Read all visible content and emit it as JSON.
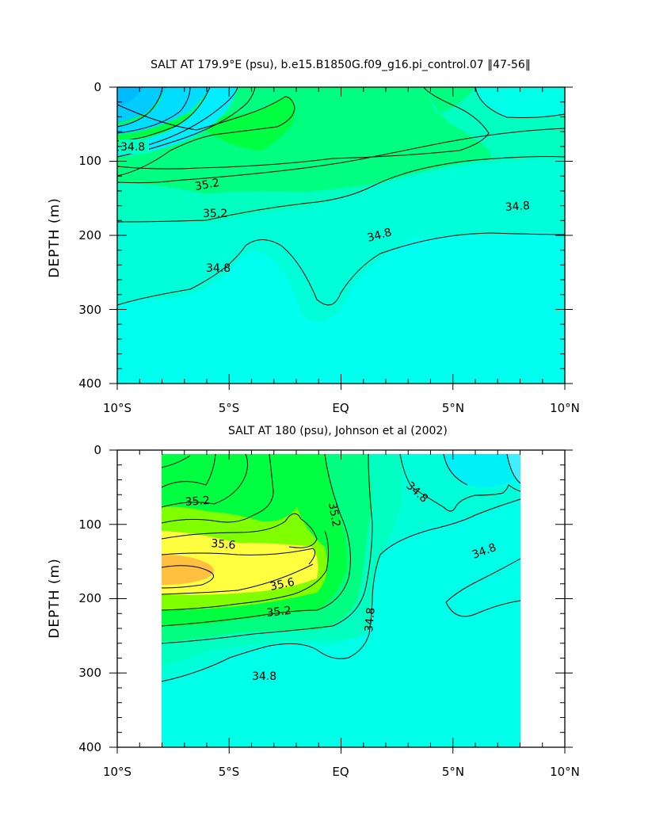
{
  "chart_data": [
    {
      "type": "heatmap",
      "title": "SALT AT 179.9°E (psu), b.e15.B1850G.f09_g16.pi_control.07 ‖47-56‖",
      "ylabel": "DEPTH (m)",
      "xlabel": "",
      "xlim": [
        -10,
        10
      ],
      "ylim": [
        400,
        0
      ],
      "x_tick_labels": [
        "10°S",
        "5°S",
        "EQ",
        "5°N",
        "10°N"
      ],
      "y_tick_labels": [
        "0",
        "100",
        "200",
        "300",
        "400"
      ],
      "contour_labels": [
        "34.8",
        "35.2",
        "35.2",
        "34.8",
        "34.8",
        "34.8"
      ],
      "data_extent_x": [
        -10,
        10
      ],
      "colors": {
        "low": "#00ffee",
        "mid_low": "#00ffc0",
        "mid": "#00ff80",
        "high": "#00ff40",
        "fresh": "#00ccff"
      }
    },
    {
      "type": "heatmap",
      "title": "SALT AT 180 (psu), Johnson et al (2002)",
      "ylabel": "DEPTH (m)",
      "xlabel": "",
      "xlim": [
        -10,
        10
      ],
      "ylim": [
        400,
        0
      ],
      "x_tick_labels": [
        "10°S",
        "5°S",
        "EQ",
        "5°N",
        "10°N"
      ],
      "y_tick_labels": [
        "0",
        "100",
        "200",
        "300",
        "400"
      ],
      "contour_labels": [
        "35.2",
        "35.6",
        "35.6",
        "35.2",
        "35.2",
        "34.8",
        "34.8",
        "34.8",
        "34.8"
      ],
      "data_extent_x": [
        -8,
        8
      ],
      "colors": {
        "max": "#ffc040",
        "high": "#ffff40",
        "mid_high": "#80ff00",
        "mid": "#00ff40",
        "low": "#00ffee"
      }
    }
  ]
}
